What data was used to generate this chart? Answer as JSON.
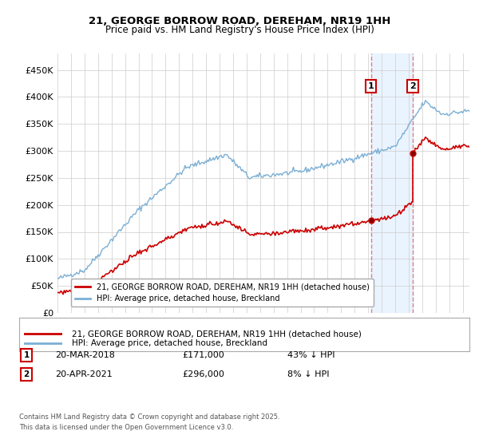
{
  "title_line1": "21, GEORGE BORROW ROAD, DEREHAM, NR19 1HH",
  "title_line2": "Price paid vs. HM Land Registry's House Price Index (HPI)",
  "legend_label_red": "21, GEORGE BORROW ROAD, DEREHAM, NR19 1HH (detached house)",
  "legend_label_blue": "HPI: Average price, detached house, Breckland",
  "annotation1_label": "1",
  "annotation1_date": "20-MAR-2018",
  "annotation1_price": "£171,000",
  "annotation1_hpi": "43% ↓ HPI",
  "annotation2_label": "2",
  "annotation2_date": "20-APR-2021",
  "annotation2_price": "£296,000",
  "annotation2_hpi": "8% ↓ HPI",
  "footnote": "Contains HM Land Registry data © Crown copyright and database right 2025.\nThis data is licensed under the Open Government Licence v3.0.",
  "red_color": "#cc0000",
  "blue_color": "#7bafd4",
  "annotation_color": "#cc0000",
  "vline_color": "#e08080",
  "bg_shade_color": "#ddeeff",
  "ylim": [
    0,
    480000
  ],
  "yticks": [
    0,
    50000,
    100000,
    150000,
    200000,
    250000,
    300000,
    350000,
    400000,
    450000
  ],
  "sale1_year": 2018.21,
  "sale1_price": 171000,
  "sale2_year": 2021.3,
  "sale2_price": 296000,
  "xmin": 1995,
  "xmax": 2025.5
}
